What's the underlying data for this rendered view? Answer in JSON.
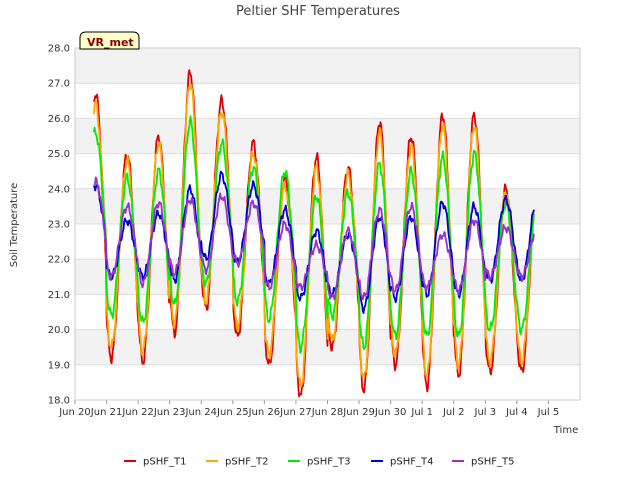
{
  "chart_data": {
    "type": "line",
    "title": "Peltier SHF Temperatures",
    "xlabel": "Time",
    "ylabel": "Soil Temperature",
    "ylim": [
      18.0,
      28.0
    ],
    "yticks": [
      "18.0",
      "19.0",
      "20.0",
      "21.0",
      "22.0",
      "23.0",
      "24.0",
      "25.0",
      "26.0",
      "27.0",
      "28.0"
    ],
    "xlim": [
      0,
      16
    ],
    "xticks": [
      "Jun 20",
      "Jun 21",
      "Jun 22",
      "Jun 23",
      "Jun 24",
      "Jun 25",
      "Jun 26",
      "Jun 27",
      "Jun 28",
      "Jun 29",
      "Jun 30",
      "Jul 1",
      "Jul 2",
      "Jul 3",
      "Jul 4",
      "Jul 5"
    ],
    "badge": "VR_met",
    "grid": true,
    "legend_position": "bottom",
    "daily_summary_note_free": true,
    "series": [
      {
        "name": "pSHF_T1",
        "color": "#dd0000",
        "day_max": [
          26.7,
          25.0,
          25.5,
          27.3,
          26.5,
          25.3,
          24.3,
          24.9,
          24.6,
          25.9,
          25.5,
          26.1,
          26.1,
          24.0
        ],
        "day_min": [
          20.4,
          19.2,
          19.1,
          19.9,
          20.6,
          19.8,
          19.0,
          18.1,
          19.5,
          18.3,
          19.0,
          18.4,
          18.7,
          18.8
        ]
      },
      {
        "name": "pSHF_T2",
        "color": "#ffa500",
        "day_max": [
          26.4,
          24.8,
          25.3,
          27.0,
          26.2,
          25.0,
          24.1,
          24.6,
          24.4,
          25.6,
          25.2,
          25.8,
          25.8,
          23.9
        ],
        "day_min": [
          20.7,
          19.5,
          19.4,
          20.2,
          20.8,
          20.1,
          19.3,
          18.4,
          19.7,
          18.6,
          19.3,
          18.7,
          19.0,
          19.1
        ]
      },
      {
        "name": "pSHF_T3",
        "color": "#00ee00",
        "day_max": [
          25.6,
          24.3,
          24.5,
          25.9,
          25.3,
          24.6,
          24.5,
          23.8,
          23.9,
          24.7,
          24.5,
          24.9,
          25.0,
          23.6
        ],
        "day_min": [
          21.5,
          20.4,
          20.2,
          20.7,
          21.3,
          20.8,
          20.3,
          19.5,
          20.4,
          19.5,
          19.8,
          19.8,
          19.8,
          20.0
        ]
      },
      {
        "name": "pSHF_T4",
        "color": "#0000cc",
        "day_max": [
          24.1,
          23.1,
          23.3,
          24.0,
          24.4,
          24.1,
          23.4,
          22.8,
          22.7,
          23.2,
          23.2,
          23.6,
          23.5,
          23.7
        ],
        "day_min": [
          22.0,
          21.5,
          21.5,
          21.4,
          22.0,
          21.9,
          21.3,
          20.9,
          21.0,
          20.6,
          20.9,
          21.0,
          21.0,
          21.4
        ]
      },
      {
        "name": "pSHF_T5",
        "color": "#9932cc",
        "day_max": [
          24.2,
          23.5,
          23.6,
          23.7,
          23.8,
          23.6,
          23.0,
          22.4,
          22.8,
          23.4,
          23.5,
          22.7,
          23.1,
          22.9
        ],
        "day_min": [
          22.0,
          21.5,
          21.3,
          21.6,
          21.7,
          21.9,
          21.2,
          21.2,
          20.9,
          20.9,
          21.1,
          21.2,
          21.1,
          21.5
        ]
      }
    ]
  }
}
